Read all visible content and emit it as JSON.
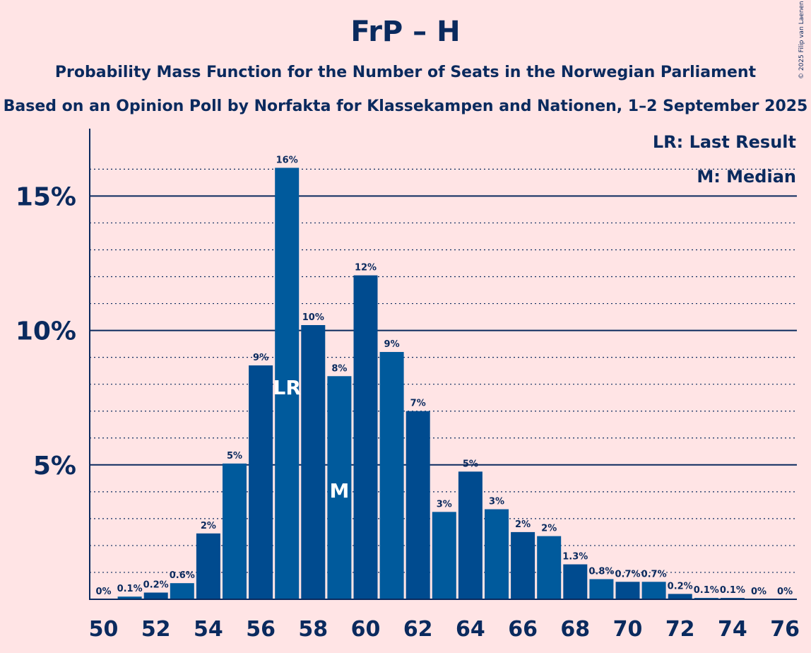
{
  "title": "FrP – H",
  "subtitle": "Probability Mass Function for the Number of Seats in the Norwegian Parliament",
  "subtitle2": "Based on an Opinion Poll by Norfakta for Klassekampen and Nationen, 1–2 September 2025",
  "copyright": "© 2025 Filip van Laenen",
  "legend": {
    "last_result": "LR: Last Result",
    "median": "M: Median"
  },
  "colors": {
    "background": "#FFE4E5",
    "bar_dark": "#004B8F",
    "bar_light": "#005A9C",
    "text": "#0A2A5E"
  },
  "chart_data": {
    "type": "bar",
    "x": [
      50,
      51,
      52,
      53,
      54,
      55,
      56,
      57,
      58,
      59,
      60,
      61,
      62,
      63,
      64,
      65,
      66,
      67,
      68,
      69,
      70,
      71,
      72,
      73,
      74,
      75,
      76
    ],
    "values": [
      0,
      0.1,
      0.25,
      0.6,
      2.45,
      5.05,
      8.7,
      16.05,
      10.2,
      8.3,
      12.05,
      9.2,
      7.0,
      3.25,
      4.75,
      3.35,
      2.5,
      2.35,
      1.3,
      0.75,
      0.65,
      0.65,
      0.2,
      0.05,
      0.05,
      0,
      0
    ],
    "labels": [
      "0%",
      "0.1%",
      "0.2%",
      "0.6%",
      "2%",
      "5%",
      "9%",
      "16%",
      "10%",
      "8%",
      "12%",
      "9%",
      "7%",
      "3%",
      "5%",
      "3%",
      "2%",
      "2%",
      "1.3%",
      "0.8%",
      "0.7%",
      "0.7%",
      "0.2%",
      "0.1%",
      "0.1%",
      "0%",
      "0%"
    ],
    "x_tick_labels": [
      "50",
      "52",
      "54",
      "56",
      "58",
      "60",
      "62",
      "64",
      "66",
      "68",
      "70",
      "72",
      "74",
      "76"
    ],
    "y_tick_labels": [
      "5%",
      "10%",
      "15%"
    ],
    "y_ticks": [
      5,
      10,
      15
    ],
    "ylim": [
      0,
      17
    ],
    "grid": "dotted minor at 1% steps, solid major at 5%",
    "last_result_seat": 57,
    "last_result_label": "LR",
    "median_seat": 59,
    "median_label": "M"
  }
}
